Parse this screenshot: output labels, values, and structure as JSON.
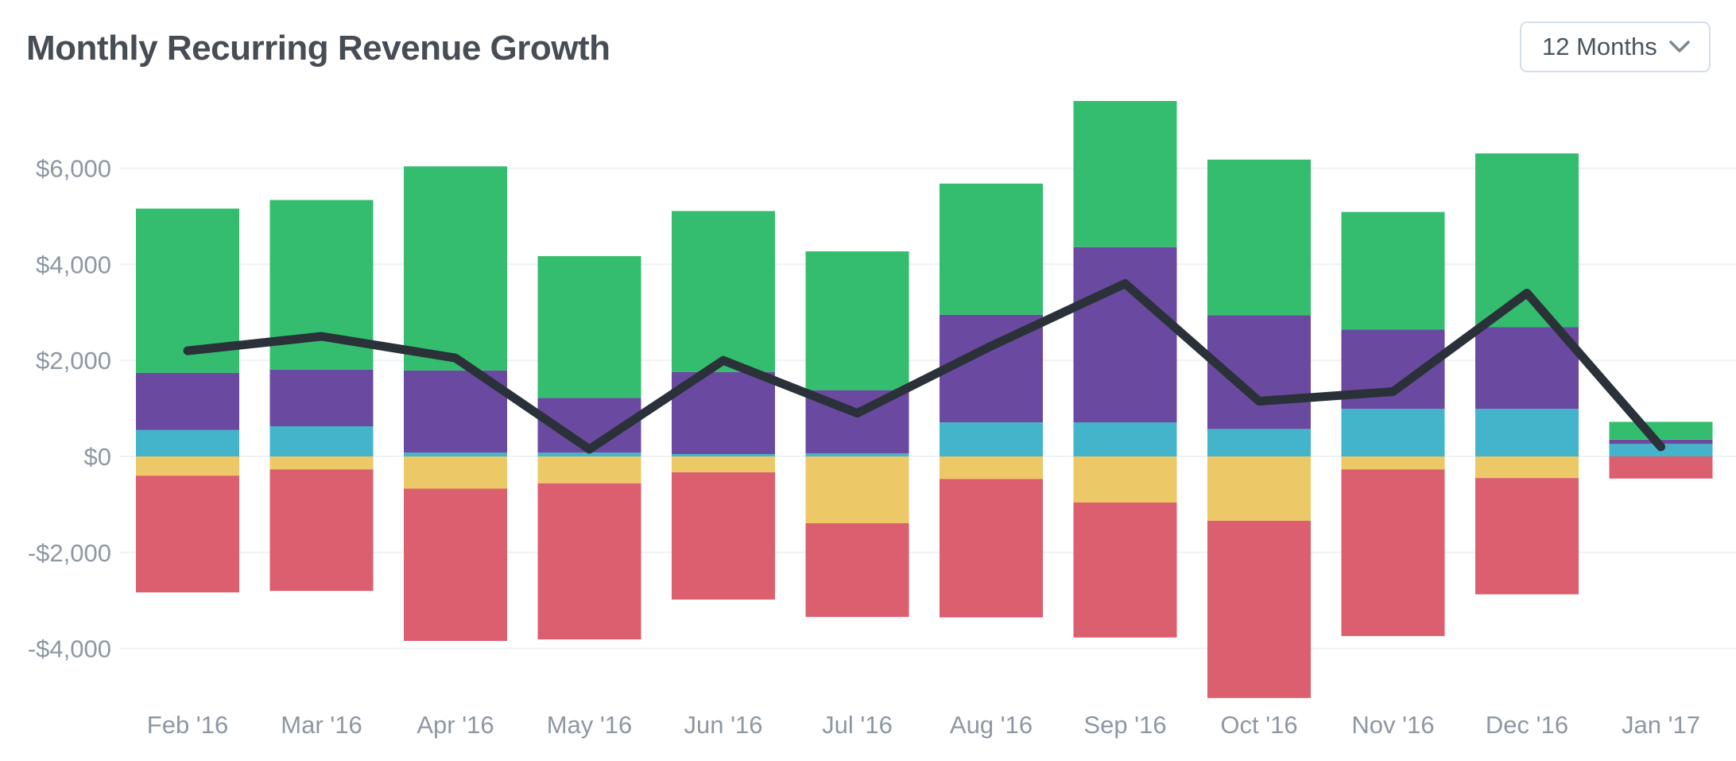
{
  "header": {
    "title": "Monthly Recurring Revenue Growth",
    "range_selector": {
      "value": "12 Months",
      "icon": "chevron-down-icon"
    }
  },
  "colors": {
    "background": "#ffffff",
    "title_text": "#474d54",
    "axis_text": "#8d97a3",
    "grid_line": "#edf3f7",
    "dropdown_border": "#d5dee7",
    "dropdown_text": "#4a545c",
    "chevron": "#7b8793"
  },
  "chart_data": {
    "type": "bar",
    "subtype": "stacked-bar-with-net-line",
    "title": "Monthly Recurring Revenue Growth",
    "xlabel": "",
    "ylabel": "",
    "categories": [
      "Feb '16",
      "Mar '16",
      "Apr '16",
      "May '16",
      "Jun '16",
      "Jul '16",
      "Aug '16",
      "Sep '16",
      "Oct '16",
      "Nov '16",
      "Dec '16",
      "Jan '17"
    ],
    "y_ticks": [
      "$6,000",
      "$4,000",
      "$2,000",
      "$0",
      "-$2,000",
      "-$4,000"
    ],
    "y_tick_values": [
      6000,
      4000,
      2000,
      0,
      -2000,
      -4000
    ],
    "ylim": [
      -5200,
      7600
    ],
    "grid": true,
    "legend": "none",
    "stack_order_note": "positive segments stack upward from zero in listed order; negative segments stack downward from zero in listed order",
    "series": [
      {
        "name": "teal-segment",
        "color": "#43b4ca",
        "sign": "positive",
        "values": [
          550,
          630,
          80,
          80,
          50,
          60,
          710,
          710,
          570,
          990,
          990,
          260
        ]
      },
      {
        "name": "purple-segment",
        "color": "#6a4aa0",
        "sign": "positive",
        "values": [
          1190,
          1180,
          1710,
          1140,
          1710,
          1320,
          2240,
          3650,
          2370,
          1650,
          1700,
          90
        ]
      },
      {
        "name": "green-segment",
        "color": "#34bd6e",
        "sign": "positive",
        "values": [
          3420,
          3530,
          4250,
          2950,
          3350,
          2890,
          2730,
          3040,
          3240,
          2450,
          3620,
          370
        ]
      },
      {
        "name": "yellow-segment",
        "color": "#edc867",
        "sign": "negative",
        "values": [
          -400,
          -270,
          -670,
          -560,
          -330,
          -1390,
          -470,
          -960,
          -1340,
          -270,
          -450,
          0
        ]
      },
      {
        "name": "red-segment",
        "color": "#db5f6e",
        "sign": "negative",
        "values": [
          -2430,
          -2530,
          -3170,
          -3250,
          -2650,
          -1950,
          -2880,
          -2810,
          -3690,
          -3470,
          -2420,
          -460
        ]
      }
    ],
    "line_series": {
      "name": "net-mrr-line",
      "color": "#2a3138",
      "values": [
        2200,
        2500,
        2050,
        150,
        2000,
        900,
        2300,
        3600,
        1150,
        1350,
        3400,
        200
      ]
    }
  }
}
